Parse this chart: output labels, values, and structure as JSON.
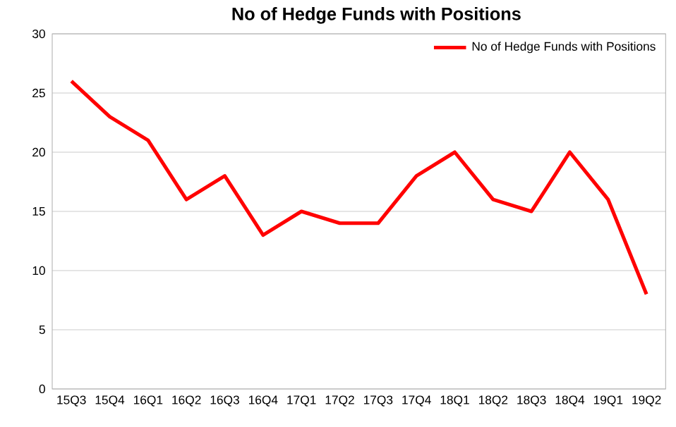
{
  "chart_data": {
    "type": "line",
    "title": "No of Hedge Funds with Positions",
    "categories": [
      "15Q3",
      "15Q4",
      "16Q1",
      "16Q2",
      "16Q3",
      "16Q4",
      "17Q1",
      "17Q2",
      "17Q3",
      "17Q4",
      "18Q1",
      "18Q2",
      "18Q3",
      "18Q4",
      "19Q1",
      "19Q2"
    ],
    "series": [
      {
        "name": "No of Hedge Funds with Positions",
        "color": "#ff0000",
        "values": [
          26,
          23,
          21,
          16,
          18,
          13,
          15,
          14,
          14,
          18,
          20,
          16,
          15,
          20,
          16,
          8
        ]
      }
    ],
    "ylim": [
      0,
      30
    ],
    "yticks": [
      0,
      5,
      10,
      15,
      20,
      25,
      30
    ],
    "grid": "y",
    "legend": "top right",
    "marker": "none",
    "line_style": "solid"
  }
}
